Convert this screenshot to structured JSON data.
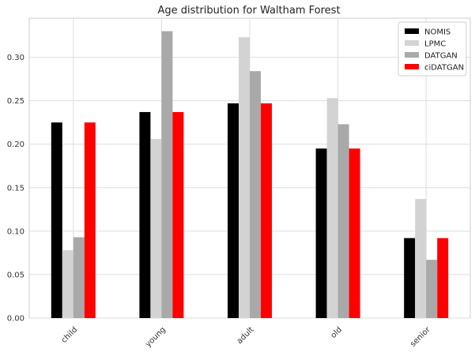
{
  "chart_data": {
    "type": "bar",
    "title": "Age distribution for Waltham Forest",
    "xlabel": "",
    "ylabel": "",
    "categories": [
      "child",
      "young",
      "adult",
      "old",
      "senior"
    ],
    "series": [
      {
        "name": "NOMIS",
        "color": "#000000",
        "values": [
          0.225,
          0.237,
          0.247,
          0.195,
          0.092
        ]
      },
      {
        "name": "LPMC",
        "color": "#d3d3d3",
        "values": [
          0.078,
          0.206,
          0.323,
          0.253,
          0.137
        ]
      },
      {
        "name": "DATGAN",
        "color": "#a9a9a9",
        "values": [
          0.093,
          0.33,
          0.284,
          0.223,
          0.067
        ]
      },
      {
        "name": "ciDATGAN",
        "color": "#ff0000",
        "values": [
          0.225,
          0.237,
          0.247,
          0.195,
          0.092
        ]
      }
    ],
    "ylim": [
      0,
      0.345
    ],
    "yticks": [
      "0.00",
      "0.05",
      "0.10",
      "0.15",
      "0.20",
      "0.25",
      "0.30"
    ],
    "grid": true,
    "legend_position": "top-right",
    "x_tick_rotation": "45"
  }
}
